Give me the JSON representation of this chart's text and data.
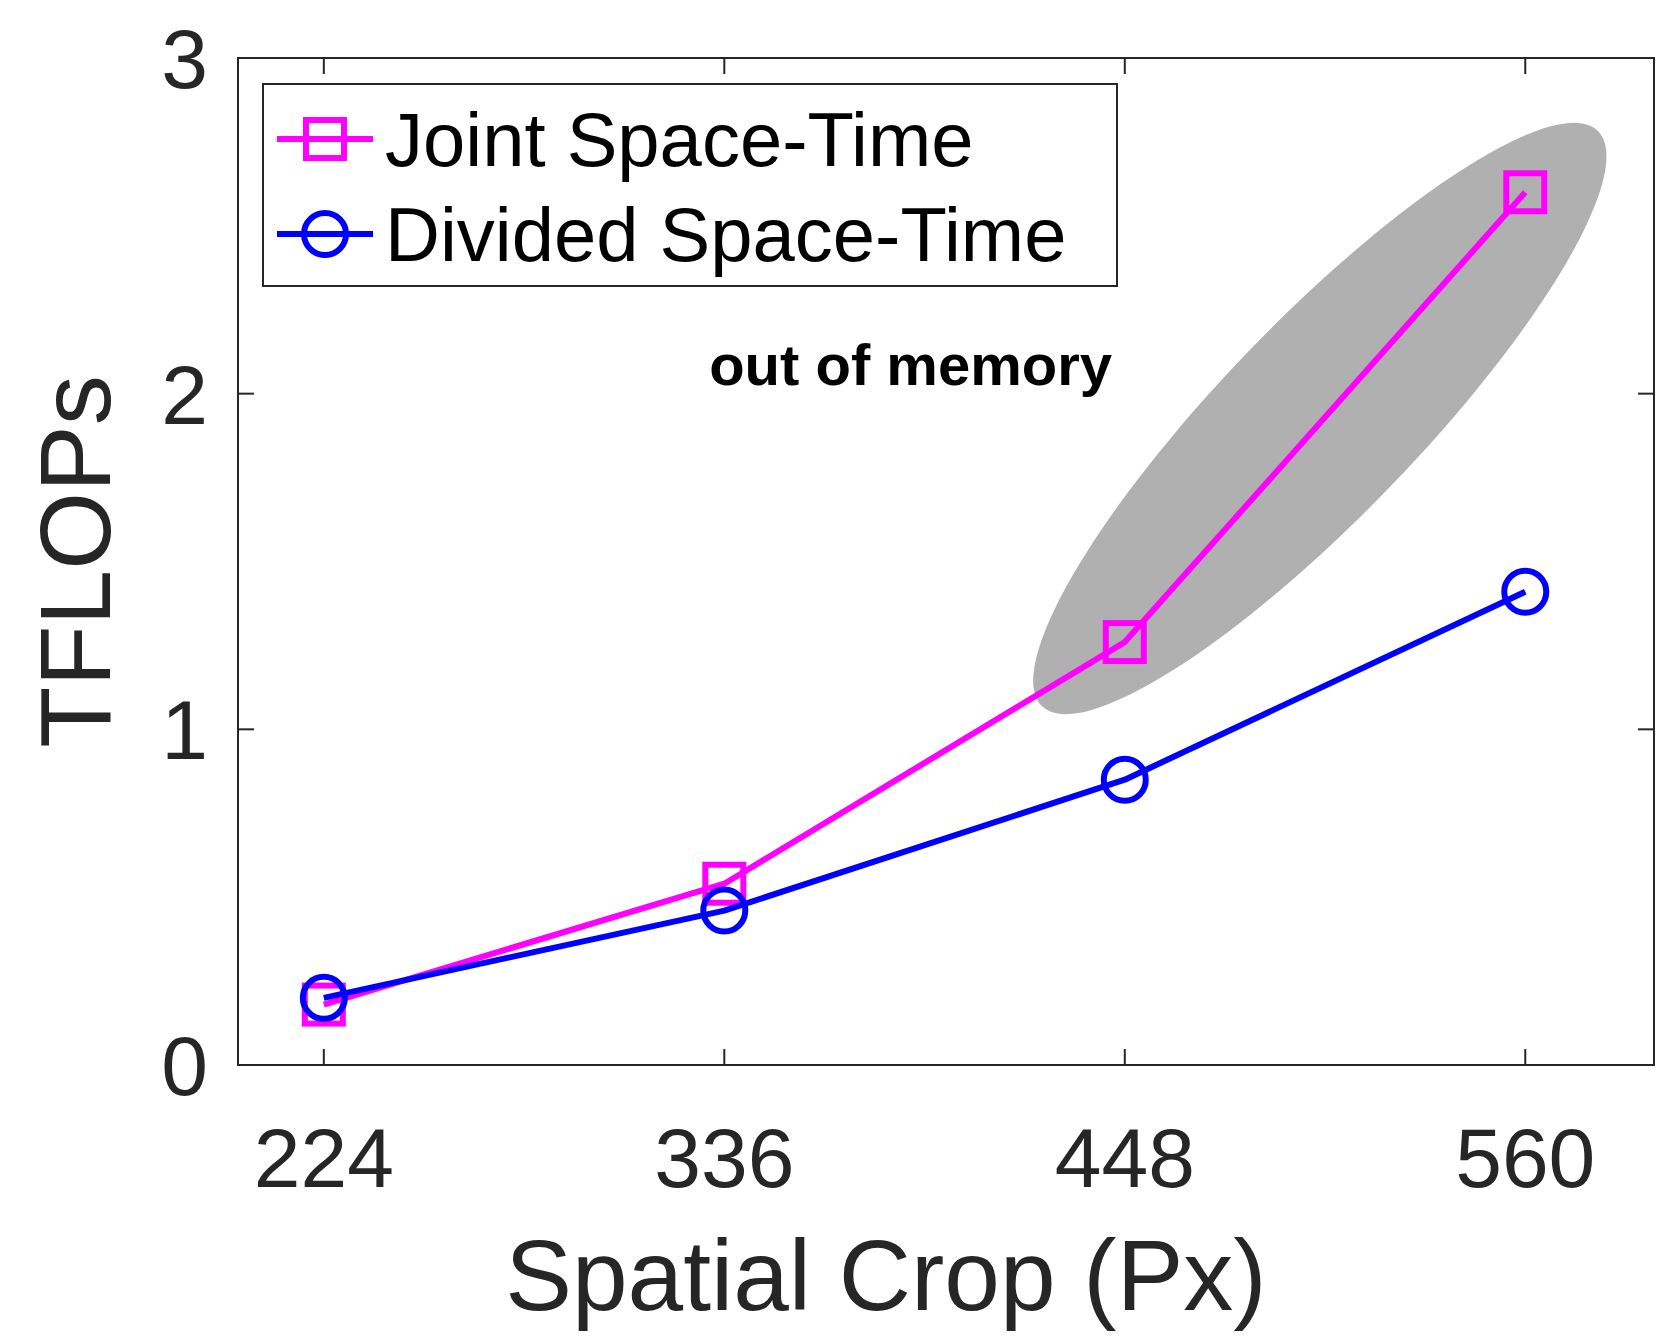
{
  "chart_data": {
    "type": "line",
    "xlabel": "Spatial Crop (Px)",
    "ylabel": "TFLOPs",
    "x": [
      224,
      336,
      448,
      560
    ],
    "series": [
      {
        "name": "Joint Space-Time",
        "color": "#ff00ff",
        "marker": "square",
        "values": [
          0.18,
          0.54,
          1.26,
          2.6
        ]
      },
      {
        "name": "Divided Space-Time",
        "color": "#0000ff",
        "marker": "circle",
        "values": [
          0.2,
          0.46,
          0.85,
          1.41
        ]
      }
    ],
    "xlim": [
      200,
      596
    ],
    "xticks": [
      224,
      336,
      448,
      560
    ],
    "ylim": [
      0,
      3
    ],
    "yticks": [
      0,
      1,
      2,
      3
    ],
    "grid": false,
    "legend": "top left",
    "line_style": "solid",
    "annotations": [
      "out of memory"
    ]
  }
}
